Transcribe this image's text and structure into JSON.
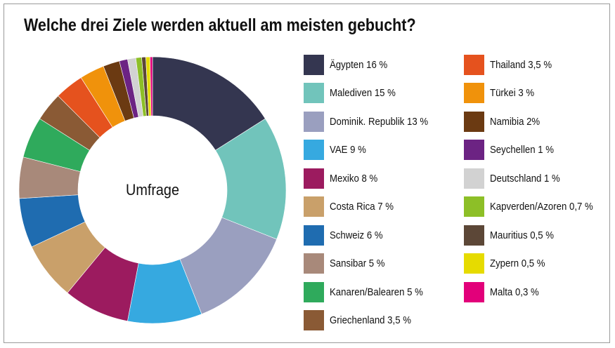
{
  "chart_data": {
    "type": "pie",
    "title": "Welche drei Ziele werden aktuell am meisten gebucht?",
    "center_label": "Umfrage",
    "legend_position": "right",
    "categories": [
      "Ägypten",
      "Malediven",
      "Dominik. Republik",
      "VAE",
      "Mexiko",
      "Costa Rica",
      "Schweiz",
      "Sansibar",
      "Kanaren/Balearen",
      "Griechenland",
      "Thailand",
      "Türkei",
      "Namibia",
      "Seychellen",
      "Deutschland",
      "Kapverden/Azoren",
      "Mauritius",
      "Zypern",
      "Malta"
    ],
    "values": [
      16,
      15,
      13,
      9,
      8,
      7,
      6,
      5,
      5,
      3.5,
      3.5,
      3,
      2,
      1,
      1,
      0.7,
      0.5,
      0.5,
      0.3
    ],
    "labels": [
      "Ägypten 16 %",
      "Malediven 15 %",
      "Dominik. Republik 13 %",
      "VAE 9 %",
      "Mexiko 8 %",
      "Costa Rica 7 %",
      "Schweiz 6 %",
      "Sansibar 5 %",
      "Kanaren/Balearen 5 %",
      "Griechenland 3,5 %",
      "Thailand 3,5 %",
      "Türkei 3 %",
      "Namibia 2%",
      "Seychellen 1 %",
      "Deutschland 1 %",
      "Kapverden/Azoren 0,7 %",
      "Mauritius 0,5 %",
      "Zypern 0,5 %",
      "Malta 0,3 %"
    ],
    "colors": [
      "#343650",
      "#71c4bb",
      "#9a9fbf",
      "#36a9e0",
      "#9c1b5f",
      "#c9a06a",
      "#1f6cb0",
      "#a8897a",
      "#2faa5c",
      "#8a5a35",
      "#e5521e",
      "#f0920b",
      "#6b3a12",
      "#6c2383",
      "#d2d2d2",
      "#8dbf27",
      "#5c4737",
      "#e6db00",
      "#e2007a"
    ]
  }
}
